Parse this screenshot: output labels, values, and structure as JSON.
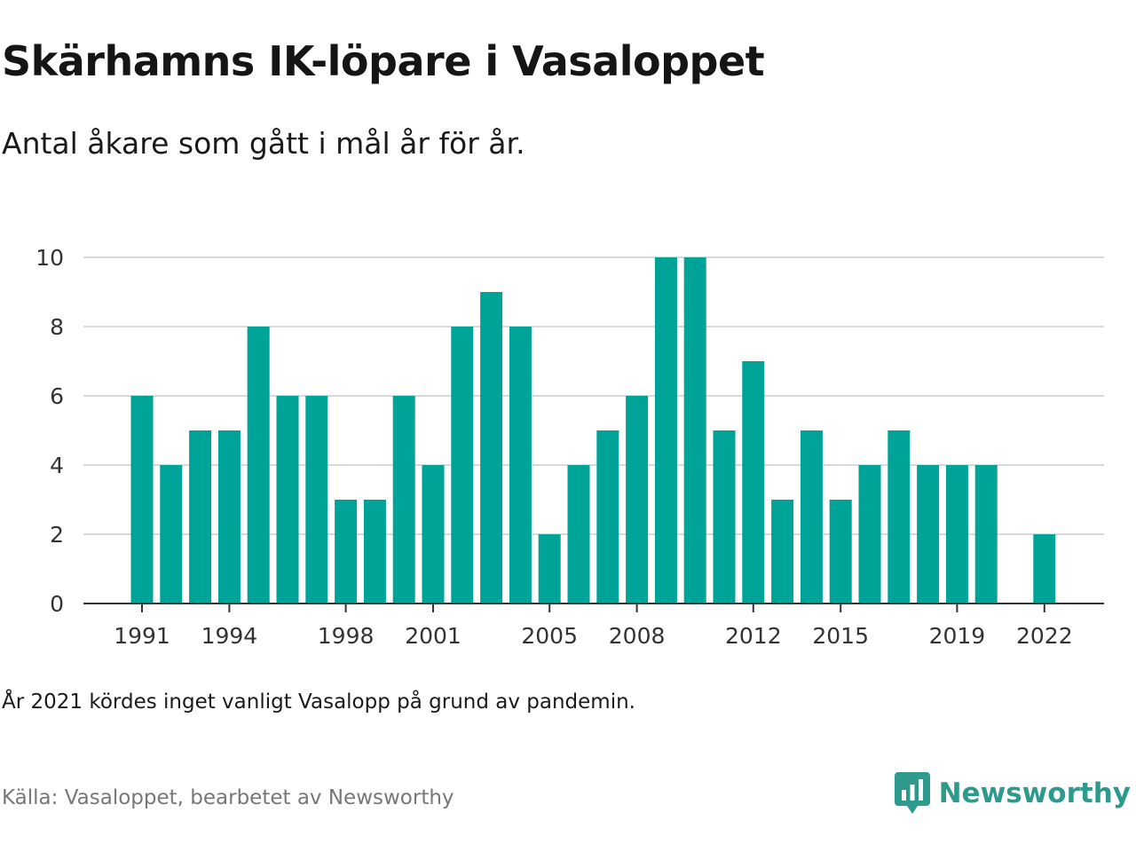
{
  "header": {
    "title": "Skärhamns IK-löpare i Vasaloppet",
    "subtitle": "Antal åkare som gått i mål år för år."
  },
  "footer": {
    "note": "År 2021 kördes inget vanligt Vasalopp på grund av pandemin.",
    "source": "Källa: Vasaloppet, bearbetet av Newsworthy",
    "brand": "Newsworthy",
    "brand_icon": "newsworthy-chart-bubble-icon"
  },
  "colors": {
    "bar": "#00a398",
    "brand": "#2e9a8d",
    "grid": "#d9d9d9",
    "axis": "#333333"
  },
  "chart_data": {
    "type": "bar",
    "categories": [
      1991,
      1992,
      1993,
      1994,
      1995,
      1996,
      1997,
      1998,
      1999,
      2000,
      2001,
      2002,
      2003,
      2004,
      2005,
      2006,
      2007,
      2008,
      2009,
      2010,
      2011,
      2012,
      2013,
      2014,
      2015,
      2016,
      2017,
      2018,
      2019,
      2020,
      2021,
      2022
    ],
    "values": [
      6,
      4,
      5,
      5,
      8,
      6,
      6,
      3,
      3,
      6,
      4,
      8,
      9,
      8,
      2,
      4,
      5,
      6,
      10,
      10,
      5,
      7,
      3,
      5,
      3,
      4,
      5,
      4,
      4,
      4,
      null,
      2
    ],
    "x_tick_labels": [
      "1991",
      "1994",
      "1998",
      "2001",
      "2005",
      "2008",
      "2012",
      "2015",
      "2019",
      "2022"
    ],
    "y_tick_labels": [
      "0",
      "2",
      "4",
      "6",
      "8",
      "10"
    ],
    "ylim": [
      0,
      10
    ],
    "xlabel": "",
    "ylabel": "",
    "grid": true
  }
}
